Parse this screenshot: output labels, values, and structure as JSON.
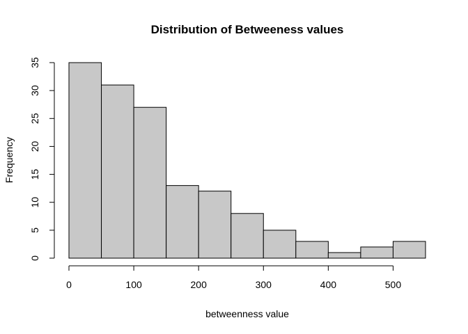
{
  "chart_data": {
    "type": "bar",
    "title": "Distribution of Betweeness values",
    "xlabel": "betweenness value",
    "ylabel": "Frequency",
    "bin_edges": [
      0,
      50,
      100,
      150,
      200,
      250,
      300,
      350,
      400,
      450,
      500,
      550
    ],
    "values": [
      35,
      31,
      27,
      13,
      12,
      8,
      5,
      3,
      1,
      2,
      3
    ],
    "xlim": [
      0,
      550
    ],
    "ylim": [
      0,
      35
    ],
    "x_ticks": [
      0,
      100,
      200,
      300,
      400,
      500
    ],
    "y_ticks": [
      0,
      5,
      10,
      15,
      20,
      25,
      30,
      35
    ],
    "grid": false,
    "colors": {
      "bar_fill": "#c8c8c8",
      "bar_stroke": "#000000"
    }
  }
}
